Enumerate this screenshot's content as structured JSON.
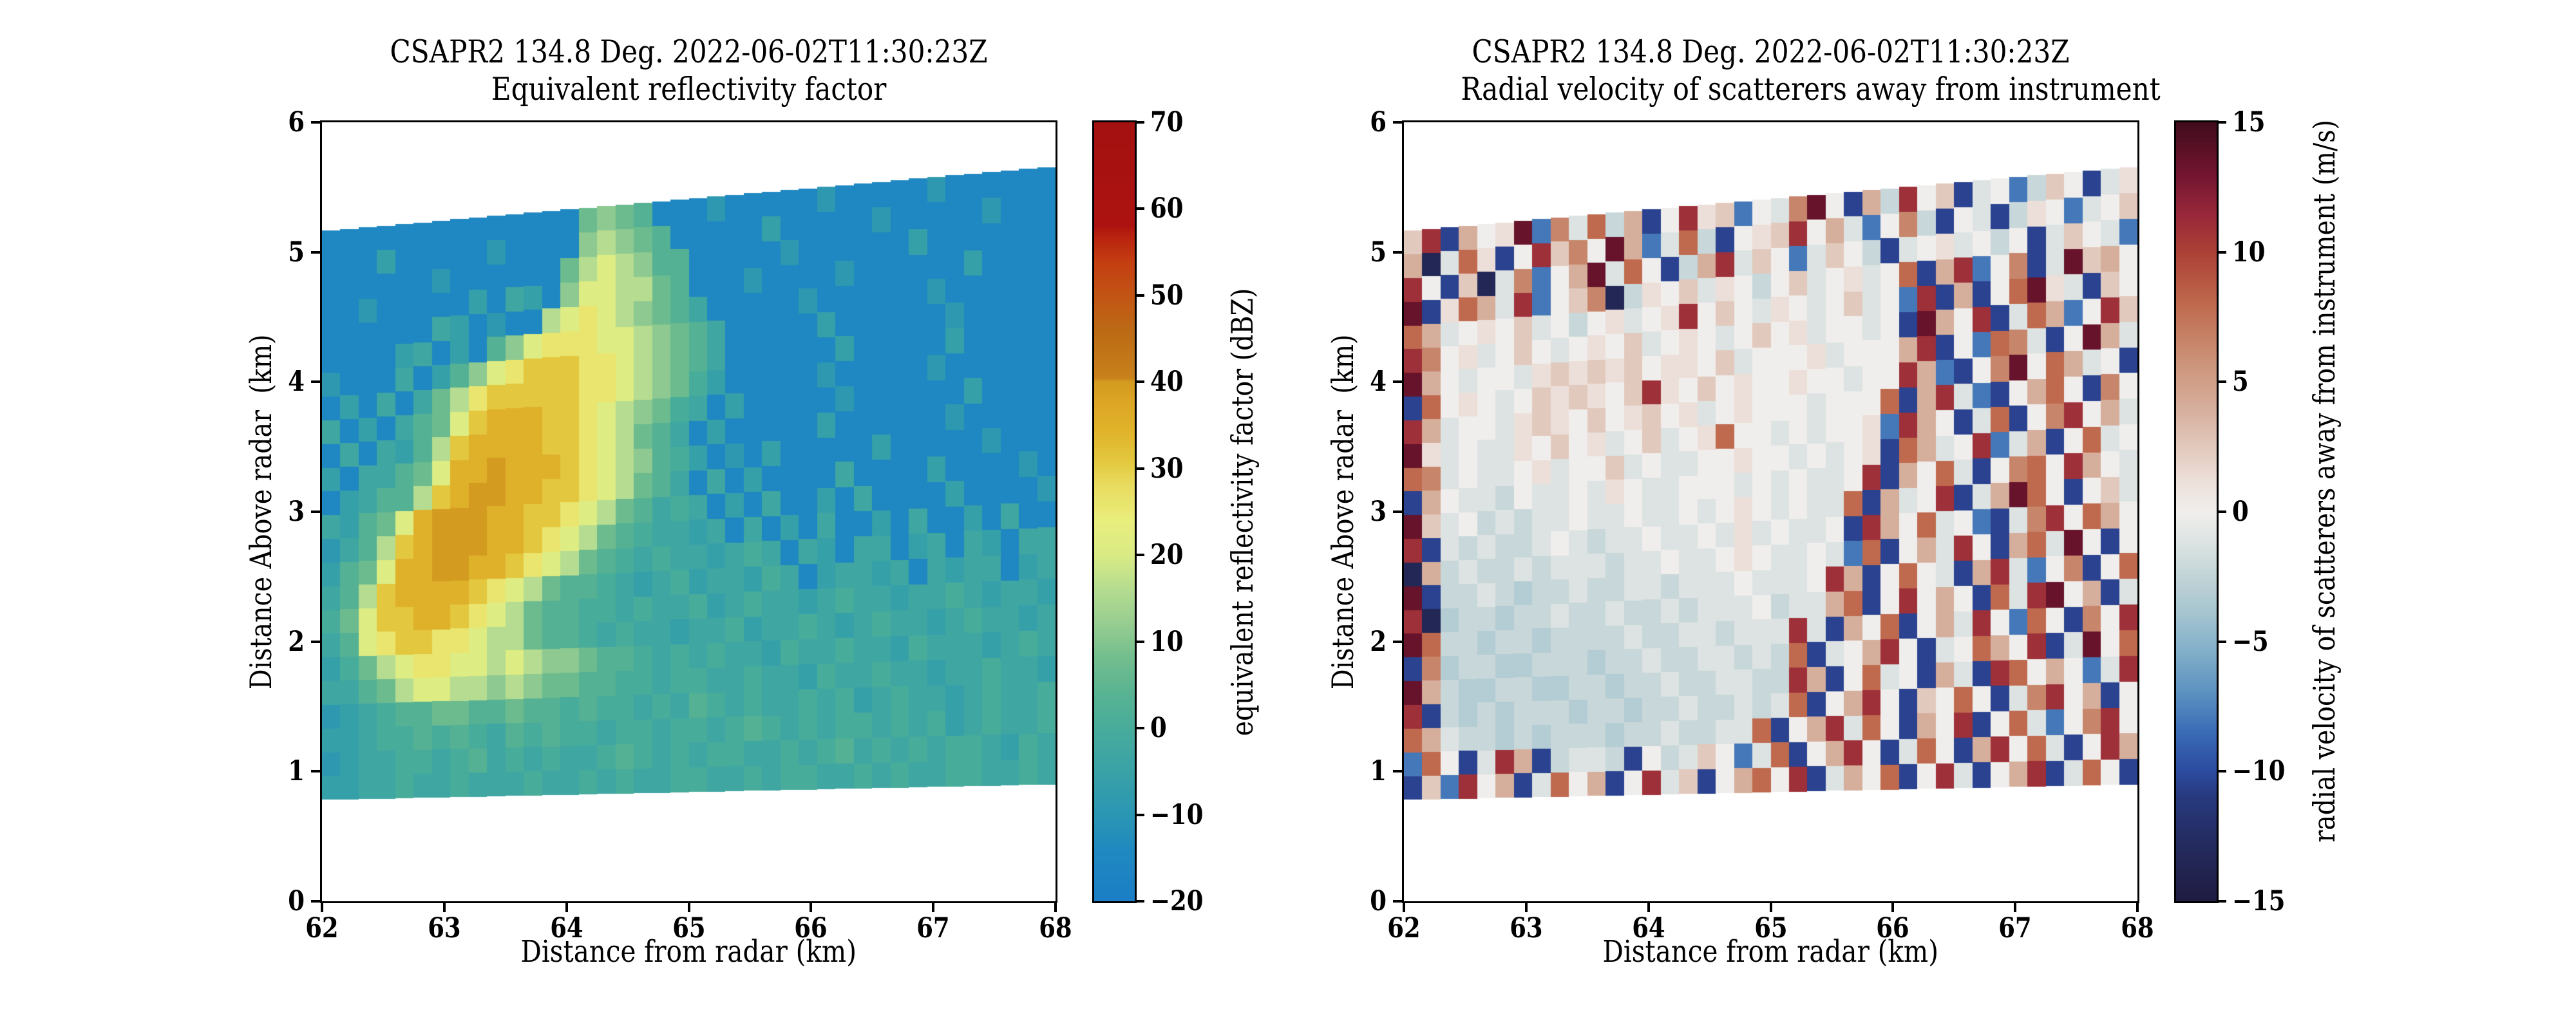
{
  "figure": {
    "background": "#ffffff"
  },
  "chart_data": [
    {
      "type": "heatmap",
      "title_line1": "CSAPR2 134.8 Deg. 2022-06-02T11:30:23Z",
      "title_line2": "Equivalent reflectivity factor",
      "xlabel": "Distance from radar (km)",
      "ylabel": "Distance Above radar  (km)",
      "xlim": [
        62,
        68
      ],
      "ylim": [
        0,
        6
      ],
      "xticks": [
        62,
        63,
        64,
        65,
        66,
        67,
        68
      ],
      "yticks": [
        0,
        1,
        2,
        3,
        4,
        5,
        6
      ],
      "grid": false,
      "colorbar": {
        "label": "equivalent reflectivity factor (dBZ)",
        "min": -20,
        "max": 70,
        "tick_values": [
          70,
          60,
          50,
          40,
          30,
          20,
          10,
          0,
          -10,
          -20
        ],
        "tick_labels": [
          "70",
          "60",
          "50",
          "40",
          "30",
          "20",
          "10",
          "0",
          "−10",
          "−20"
        ],
        "stops": [
          [
            -20,
            "#1b7ec6"
          ],
          [
            -14,
            "#2089c0"
          ],
          [
            -10,
            "#2b96b3"
          ],
          [
            -5,
            "#39a2a7"
          ],
          [
            0,
            "#48ac9b"
          ],
          [
            4,
            "#58b392"
          ],
          [
            8,
            "#72bd8e"
          ],
          [
            12,
            "#96cd90"
          ],
          [
            16,
            "#b5dc90"
          ],
          [
            20,
            "#d9eb85"
          ],
          [
            24,
            "#e9ee7c"
          ],
          [
            28,
            "#e8dc5f"
          ],
          [
            31,
            "#e3c73e"
          ],
          [
            34,
            "#e0b52c"
          ],
          [
            38,
            "#dca424"
          ],
          [
            40,
            "#d39b20"
          ],
          [
            40.5,
            "#c8811b"
          ],
          [
            46,
            "#bc6a15"
          ],
          [
            50,
            "#c25414"
          ],
          [
            54,
            "#c33d11"
          ],
          [
            57,
            "#b7210f"
          ],
          [
            58,
            "#ac1310"
          ],
          [
            70,
            "#a31110"
          ]
        ]
      },
      "mesh": {
        "cols": 40,
        "rows": 24,
        "x_start": 62,
        "x_end": 68,
        "bottom_edge": [
          0.78,
          0.9
        ],
        "top_edge": [
          5.16,
          5.66
        ],
        "units": "dBZ",
        "palette": {
          "a": -15,
          "b": -12,
          "c": -9,
          "d": -6,
          "e": -3,
          "f": 0,
          "g": 3,
          "h": 7,
          "i": 11,
          "j": 16,
          "k": 21,
          "l": 26,
          "m": 31,
          "n": 35,
          "o": 40
        },
        "cells": [
          "aaaaaaaaaaaaaahihgaaacaaaaacaaaaacaaaaaa",
          "aaadaaaaacaaaaijihgaaaaadaaaaacaaaaacaaa",
          "aaaaaacaaaaaahjkjiggaaaaacaaaaaadaaaaaaa",
          "aacaaaaadaedaikkjjhgaaacaaaacaaaaaadaaaa",
          "aaaaaaedacaajklkjihgeaaaaacaaaaaacaaaaaa",
          "aaaadeadagiklllkkjihgeaaaaadaaaaaacaaaaa",
          "caaaeadgiklmmmllkjihgeaaaaaadaaaaadaaaaa",
          "adaeaehjlmmmmmllkjihfdaaaaacaaaaacaaaaaa",
          "eadaeghkmnnnmmlkjihfeadaaaaacaaaaaadaaaa",
          "aeaedgjmnnnnmmlkjhgeadaaaaadaaaaaacaaaaa",
          "daeeghknnonnnmlkjigfdacadaaaaadaaaaacaaa",
          "adeggjmnoonnmmlkjhgeaeadaaaaeaaaadaaaaca",
          "edghknooonnmmlkjhgefeadaeaadaeaaaadaaaac",
          "cegjmnooonnmlkjhgfeedeaeadaeaadaeaadaeaa",
          "dghknnoonnmlkjhgfefeedefeaedaeeadeaedaee",
          "egjmnnnnmlkjhggfedefdeedfeadeedeaedeeade",
          "fhkmmnnmlkjhggffefeefdefeedefeedeefedeed",
          "egklmmllkjjhggfefeedeefdeefedefeedefeede",
          "dfhjkllkkjkjiihggfefefeedfeefeedfeeedefe",
          "eeghjkkjjijihhggffeffeefeedfeefeedeefeed",
          "cdefgghhgghggfgffefegfefeefefdefeedefeef",
          "ddeffgfgfegfgffeffeffefgfefeffefefdefeef",
          "cdeeffefgefefeefgfefeffeefefgefefeffedfe",
          "ddeefeefeeefeefefeeffeefeffeefefeeffeefe"
        ]
      }
    },
    {
      "type": "heatmap",
      "title_line1": "CSAPR2 134.8 Deg. 2022-06-02T11:30:23Z",
      "title_line2": "Radial velocity of scatterers away from instrument",
      "xlabel": "Distance from radar (km)",
      "ylabel": "Distance Above radar  (km)",
      "xlim": [
        62,
        68
      ],
      "ylim": [
        0,
        6
      ],
      "xticks": [
        62,
        63,
        64,
        65,
        66,
        67,
        68
      ],
      "yticks": [
        0,
        1,
        2,
        3,
        4,
        5,
        6
      ],
      "grid": false,
      "colorbar": {
        "label": "radial velocity of scatterers away from instrument (m/s)",
        "min": -15,
        "max": 15,
        "tick_values": [
          15,
          10,
          5,
          0,
          -5,
          -10,
          -15
        ],
        "tick_labels": [
          "15",
          "10",
          "5",
          "0",
          "−5",
          "−10",
          "−15"
        ],
        "stops": [
          [
            -15,
            "#201c41"
          ],
          [
            -13,
            "#232a5c"
          ],
          [
            -11,
            "#27397e"
          ],
          [
            -10,
            "#2c4ba0"
          ],
          [
            -8.5,
            "#3a6bb5"
          ],
          [
            -7,
            "#5b91c0"
          ],
          [
            -5.5,
            "#7fadc8"
          ],
          [
            -4,
            "#a3c3cf"
          ],
          [
            -2.5,
            "#c2d4d6"
          ],
          [
            -1.2,
            "#dce3e2"
          ],
          [
            0,
            "#f0eeec"
          ],
          [
            1.2,
            "#ecdfd9"
          ],
          [
            2.5,
            "#e2c9bd"
          ],
          [
            4,
            "#d6ae9c"
          ],
          [
            6,
            "#ca8f75"
          ],
          [
            8,
            "#bf6a4e"
          ],
          [
            10,
            "#ac4136"
          ],
          [
            11.5,
            "#97273a"
          ],
          [
            13,
            "#731530"
          ],
          [
            15,
            "#400c1c"
          ]
        ]
      },
      "mesh": {
        "cols": 40,
        "rows": 24,
        "x_start": 62,
        "x_end": 68,
        "bottom_edge": [
          0.78,
          0.9
        ],
        "top_edge": [
          5.16,
          5.66
        ],
        "units": "m/s",
        "palette": {
          "0": 0,
          "1": -1.2,
          "2": -2.2,
          "3": -3.2,
          "4": -4.5,
          "5": -6,
          "r": 1.2,
          "s": 2.5,
          "q": 4,
          "p": 6.5,
          "C": -8,
          "B": -10.5,
          "A": -13.5,
          "E": -15,
          "S": 8,
          "T": 11,
          "U": 13.5,
          "V": 15
        },
        "cells": [
          "sTBq0rUCp1S2qB0TrsC01pU0Bq2T0sB10C2s0B1r",
          "qA1SrB0Tsp0UqC1S2B0rsT0q1C0p2B01B2r0C10s",
          "T0BsA1pC0qU1S0B2qT1s0C1s02B10r1020B1s01C",
          "UBrSq1TC0spA2r0s1r020s10r10SBqTC0pB1Usq0",
          "Sq10r0s1020r10rT0s01r010s10CTBqB0SUr1Bs0",
          "Tp0r10s010r0s10r010s0r10010BUq0TB1SqC0Ts",
          "Uq01001rsrsrs0rr0s1000r1000qTB0CSp1B0Uq1",
          "BS0r010srsr0sTr0s0r00r00100TqCB0pU0Sq10B",
          "Tq1001rsr0s0rs0r10r0001000SBqT1CB0qS0Bp0",
          "Ur1011r0s0r10s10rS0010100rCTq0B1SB0pT0q1",
          "Sp10110r100s101100r001010rBSq10TC1qB0S10",
          "Bq011201101r0110001010110TBq0S1B0pS0Tq01",
          "Us1021211011011010r01011SBq10TB1qUS0B0s1",
          "TB1212210121101101r10110BTq0S10CB1pT0Sq0",
          "Aq2122121112110110r01101CSB0q1T0BqS1U0B0",
          "UB22123221",
          "TA322322122122121110211qSB0T0q0BS1TU0qB1",
          "US223223222212211211",
          "Bp3223322232212211212SB10qT0B10Sq0TB1U0S",
          "Uq2332233223221221122TqB0S10Bq1BTS0q0C1T",
          "TB232322232232212212",
          "Sq12232322232212211SB0qT1S0Bq0TB0S1C0pT0",
          "CS0B1TqB2112B021s0C1SB0qT0B1S0BqT0S1B0Tq",
          "BsCT0qB1S0qB0T1sB0qS0TB1q0SB0T1B0qTB1S0B"
        ],
        "cells_fix": {
          "15": "UB221232212211211101110TqB0S01BqT1C0pB0S",
          "17": "US2232232222122112111T1Bq0SB0q1T0CS0Bp0T",
          "20": "TB2323222322322122121SB0qT0Bs0S0B1pT0qB0"
        }
      }
    }
  ]
}
